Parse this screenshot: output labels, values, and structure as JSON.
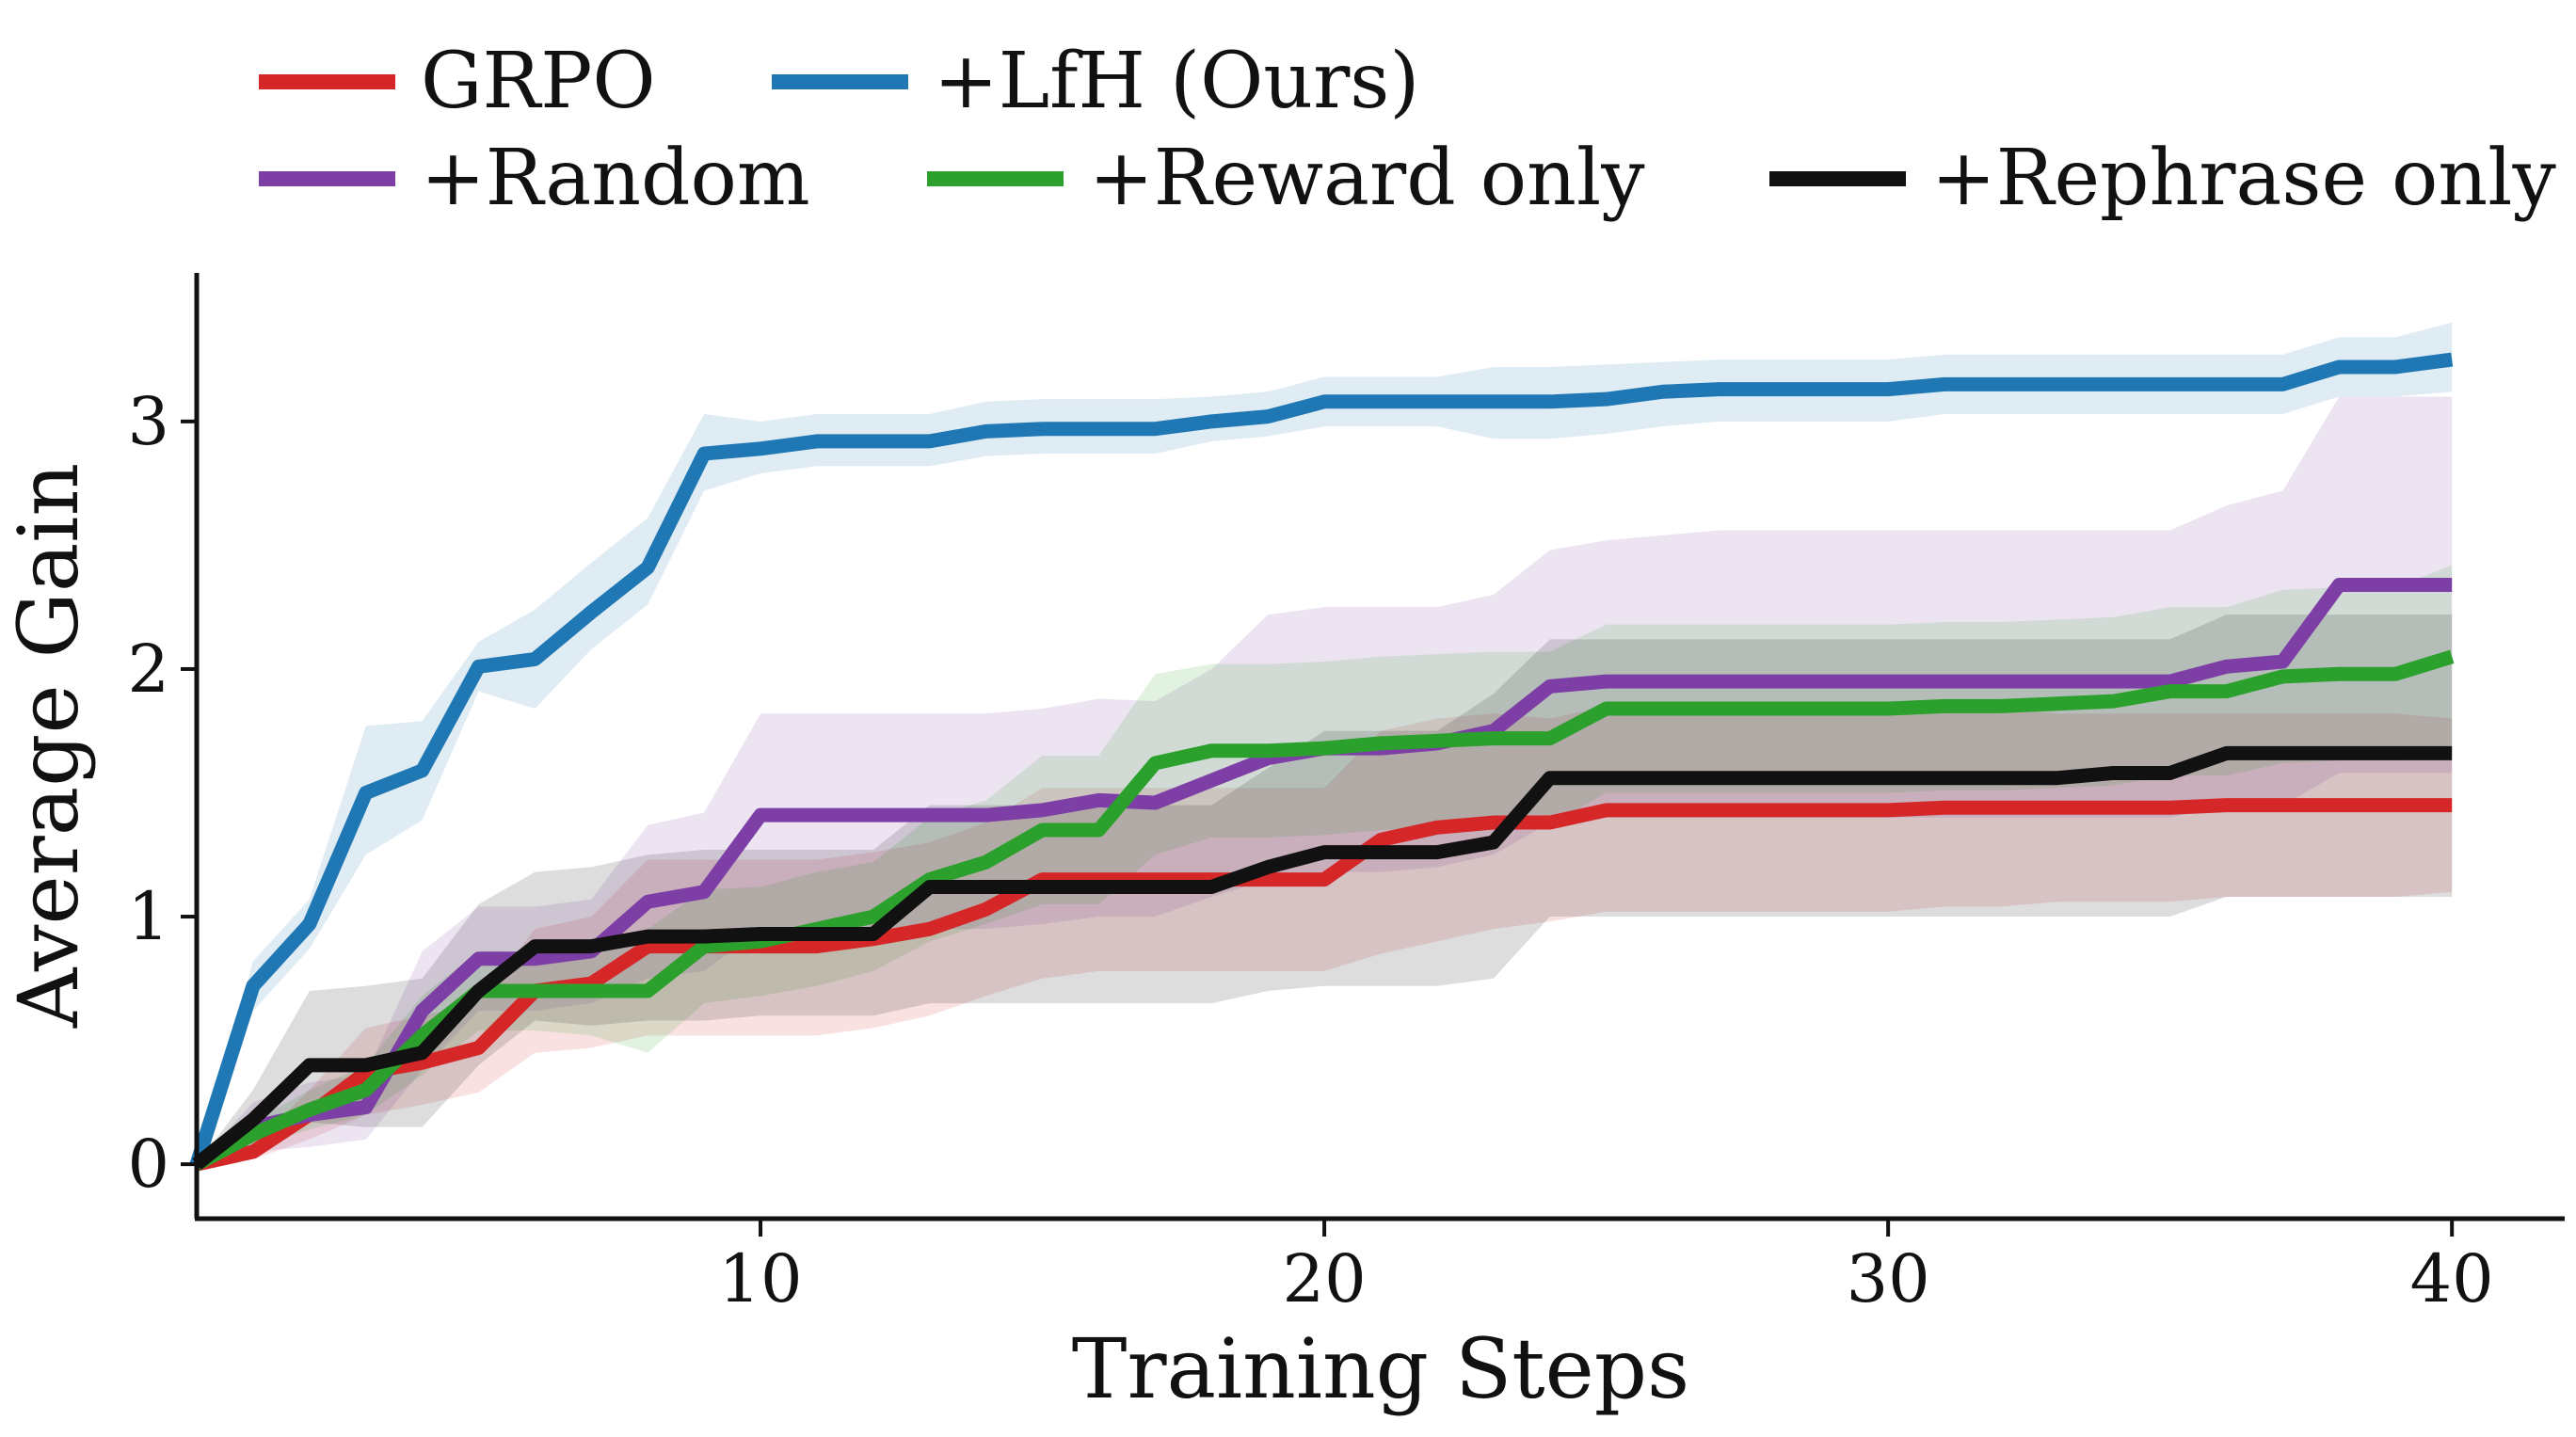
{
  "chart_data": {
    "type": "line",
    "title": "",
    "xlabel": "Training Steps",
    "ylabel": "Average Gain",
    "xlim": [
      0,
      42
    ],
    "ylim": [
      -0.22,
      3.6
    ],
    "xticks": [
      10,
      20,
      30,
      40
    ],
    "yticks": [
      0,
      1,
      2,
      3
    ],
    "grid": false,
    "legend_position": "top",
    "x": [
      0,
      1,
      2,
      3,
      4,
      5,
      6,
      7,
      8,
      9,
      10,
      11,
      12,
      13,
      14,
      15,
      16,
      17,
      18,
      19,
      20,
      21,
      22,
      23,
      24,
      25,
      26,
      27,
      28,
      29,
      30,
      31,
      32,
      33,
      34,
      35,
      36,
      37,
      38,
      39,
      40
    ],
    "series": [
      {
        "name": "GRPO",
        "color": "#d62728",
        "values": [
          0,
          0.05,
          0.2,
          0.37,
          0.41,
          0.47,
          0.7,
          0.73,
          0.88,
          0.88,
          0.88,
          0.88,
          0.91,
          0.95,
          1.03,
          1.15,
          1.15,
          1.15,
          1.15,
          1.15,
          1.15,
          1.31,
          1.36,
          1.38,
          1.38,
          1.43,
          1.43,
          1.43,
          1.43,
          1.43,
          1.43,
          1.44,
          1.44,
          1.44,
          1.44,
          1.44,
          1.45,
          1.45,
          1.45,
          1.45,
          1.45
        ],
        "lower": [
          0,
          0.02,
          0.1,
          0.2,
          0.24,
          0.29,
          0.45,
          0.47,
          0.52,
          0.52,
          0.52,
          0.52,
          0.55,
          0.6,
          0.68,
          0.75,
          0.78,
          0.78,
          0.78,
          0.78,
          0.78,
          0.85,
          0.9,
          0.95,
          0.98,
          1.02,
          1.02,
          1.02,
          1.02,
          1.02,
          1.02,
          1.04,
          1.04,
          1.06,
          1.06,
          1.06,
          1.08,
          1.08,
          1.08,
          1.08,
          1.1
        ],
        "upper": [
          0,
          0.08,
          0.3,
          0.55,
          0.6,
          0.65,
          0.95,
          1.0,
          1.23,
          1.23,
          1.23,
          1.23,
          1.26,
          1.3,
          1.38,
          1.52,
          1.52,
          1.52,
          1.52,
          1.52,
          1.52,
          1.75,
          1.8,
          1.82,
          1.8,
          1.85,
          1.85,
          1.85,
          1.85,
          1.85,
          1.85,
          1.84,
          1.84,
          1.82,
          1.82,
          1.82,
          1.82,
          1.82,
          1.82,
          1.82,
          1.8
        ]
      },
      {
        "name": "+LfH (Ours)",
        "color": "#1f77b4",
        "values": [
          0,
          0.72,
          0.97,
          1.5,
          1.59,
          2.01,
          2.04,
          2.23,
          2.41,
          2.87,
          2.89,
          2.92,
          2.92,
          2.92,
          2.96,
          2.97,
          2.97,
          2.97,
          3.0,
          3.02,
          3.08,
          3.08,
          3.08,
          3.08,
          3.08,
          3.09,
          3.12,
          3.13,
          3.13,
          3.13,
          3.13,
          3.15,
          3.15,
          3.15,
          3.15,
          3.15,
          3.15,
          3.15,
          3.22,
          3.22,
          3.25
        ],
        "lower": [
          0,
          0.62,
          0.87,
          1.25,
          1.39,
          1.91,
          1.84,
          2.08,
          2.26,
          2.72,
          2.79,
          2.82,
          2.82,
          2.82,
          2.86,
          2.87,
          2.87,
          2.87,
          2.92,
          2.94,
          2.98,
          2.98,
          2.98,
          2.93,
          2.93,
          2.95,
          2.98,
          3.0,
          3.0,
          3.0,
          3.0,
          3.03,
          3.03,
          3.03,
          3.03,
          3.03,
          3.03,
          3.03,
          3.1,
          3.1,
          3.12
        ],
        "upper": [
          0,
          0.82,
          1.07,
          1.77,
          1.79,
          2.11,
          2.24,
          2.43,
          2.61,
          3.03,
          3.0,
          3.03,
          3.03,
          3.03,
          3.08,
          3.09,
          3.09,
          3.09,
          3.1,
          3.12,
          3.18,
          3.18,
          3.18,
          3.22,
          3.22,
          3.23,
          3.24,
          3.25,
          3.25,
          3.25,
          3.25,
          3.27,
          3.27,
          3.27,
          3.27,
          3.27,
          3.27,
          3.27,
          3.34,
          3.34,
          3.4
        ]
      },
      {
        "name": "+Random",
        "color": "#7d3fa6",
        "values": [
          0,
          0.15,
          0.2,
          0.23,
          0.62,
          0.83,
          0.83,
          0.86,
          1.06,
          1.1,
          1.41,
          1.41,
          1.41,
          1.41,
          1.41,
          1.43,
          1.47,
          1.46,
          1.55,
          1.64,
          1.68,
          1.68,
          1.7,
          1.75,
          1.93,
          1.95,
          1.95,
          1.95,
          1.95,
          1.95,
          1.95,
          1.95,
          1.95,
          1.95,
          1.95,
          1.95,
          2.01,
          2.03,
          2.34,
          2.34,
          2.34
        ],
        "lower": [
          0,
          0.05,
          0.07,
          0.1,
          0.38,
          0.62,
          0.62,
          0.65,
          0.75,
          0.78,
          0.95,
          0.95,
          0.95,
          0.95,
          0.95,
          0.97,
          1.0,
          1.0,
          1.08,
          1.15,
          1.18,
          1.18,
          1.2,
          1.25,
          1.38,
          1.4,
          1.4,
          1.4,
          1.4,
          1.4,
          1.4,
          1.4,
          1.4,
          1.4,
          1.4,
          1.4,
          1.45,
          1.45,
          1.58,
          1.58,
          1.58
        ],
        "upper": [
          0,
          0.25,
          0.33,
          0.36,
          0.86,
          1.04,
          1.04,
          1.07,
          1.37,
          1.42,
          1.82,
          1.82,
          1.82,
          1.82,
          1.82,
          1.84,
          1.88,
          1.87,
          2.0,
          2.22,
          2.25,
          2.25,
          2.25,
          2.3,
          2.48,
          2.52,
          2.54,
          2.56,
          2.56,
          2.56,
          2.56,
          2.56,
          2.56,
          2.56,
          2.56,
          2.56,
          2.66,
          2.72,
          3.1,
          3.1,
          3.1
        ]
      },
      {
        "name": "+Reward only",
        "color": "#2ca02c",
        "values": [
          0,
          0.12,
          0.22,
          0.3,
          0.52,
          0.7,
          0.7,
          0.7,
          0.7,
          0.88,
          0.9,
          0.95,
          1.0,
          1.15,
          1.22,
          1.35,
          1.35,
          1.62,
          1.67,
          1.67,
          1.68,
          1.7,
          1.71,
          1.72,
          1.72,
          1.84,
          1.84,
          1.84,
          1.84,
          1.84,
          1.84,
          1.85,
          1.85,
          1.86,
          1.87,
          1.91,
          1.91,
          1.97,
          1.98,
          1.98,
          2.05
        ],
        "lower": [
          0,
          0.07,
          0.14,
          0.2,
          0.36,
          0.54,
          0.54,
          0.52,
          0.45,
          0.65,
          0.68,
          0.72,
          0.78,
          0.9,
          0.97,
          1.05,
          1.05,
          1.25,
          1.32,
          1.32,
          1.33,
          1.35,
          1.36,
          1.37,
          1.37,
          1.5,
          1.5,
          1.5,
          1.5,
          1.5,
          1.5,
          1.51,
          1.51,
          1.52,
          1.53,
          1.57,
          1.57,
          1.62,
          1.63,
          1.63,
          1.68
        ],
        "upper": [
          0,
          0.17,
          0.3,
          0.4,
          0.68,
          0.86,
          0.86,
          0.88,
          0.95,
          1.11,
          1.12,
          1.18,
          1.22,
          1.4,
          1.47,
          1.65,
          1.65,
          1.98,
          2.02,
          2.02,
          2.03,
          2.05,
          2.06,
          2.07,
          2.07,
          2.18,
          2.18,
          2.18,
          2.18,
          2.18,
          2.18,
          2.19,
          2.19,
          2.2,
          2.21,
          2.25,
          2.25,
          2.32,
          2.33,
          2.33,
          2.42
        ]
      },
      {
        "name": "+Rephrase only",
        "color": "#111111",
        "values": [
          0,
          0.18,
          0.4,
          0.4,
          0.45,
          0.7,
          0.88,
          0.88,
          0.92,
          0.92,
          0.93,
          0.93,
          0.93,
          1.12,
          1.12,
          1.12,
          1.12,
          1.12,
          1.12,
          1.2,
          1.26,
          1.26,
          1.26,
          1.3,
          1.56,
          1.56,
          1.56,
          1.56,
          1.56,
          1.56,
          1.56,
          1.56,
          1.56,
          1.56,
          1.58,
          1.58,
          1.66,
          1.66,
          1.66,
          1.66,
          1.66
        ],
        "lower": [
          0,
          0.07,
          0.17,
          0.15,
          0.15,
          0.4,
          0.58,
          0.56,
          0.58,
          0.58,
          0.6,
          0.6,
          0.6,
          0.65,
          0.65,
          0.65,
          0.65,
          0.65,
          0.65,
          0.7,
          0.72,
          0.72,
          0.72,
          0.75,
          1.0,
          1.0,
          1.0,
          1.0,
          1.0,
          1.0,
          1.0,
          1.0,
          1.0,
          1.0,
          1.0,
          1.0,
          1.08,
          1.08,
          1.08,
          1.08,
          1.08
        ],
        "upper": [
          0,
          0.3,
          0.7,
          0.72,
          0.75,
          1.05,
          1.18,
          1.2,
          1.25,
          1.27,
          1.27,
          1.27,
          1.27,
          1.45,
          1.45,
          1.45,
          1.45,
          1.45,
          1.45,
          1.6,
          1.75,
          1.75,
          1.75,
          1.9,
          2.12,
          2.12,
          2.12,
          2.12,
          2.12,
          2.12,
          2.12,
          2.12,
          2.12,
          2.12,
          2.12,
          2.12,
          2.22,
          2.22,
          2.22,
          2.22,
          2.22
        ]
      }
    ]
  }
}
